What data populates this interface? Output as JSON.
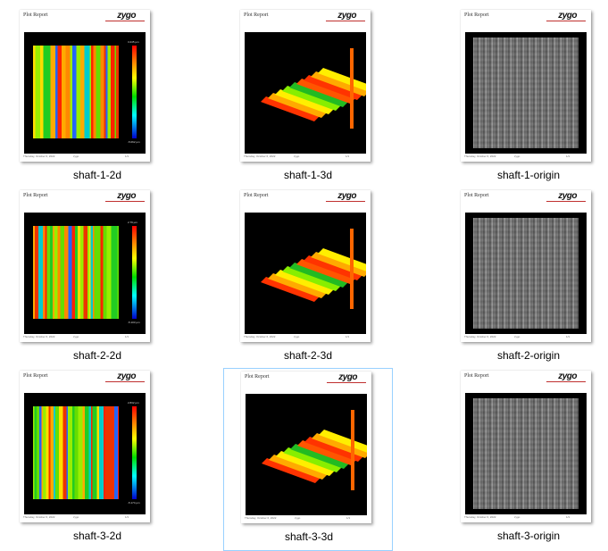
{
  "tiles": [
    {
      "label": "shaft-1-2d",
      "kind": "2d",
      "report_title": "Plot Report",
      "logo": "zygo",
      "cbar_top": "3.245 µm",
      "cbar_bottom": "-5.062 µm",
      "footer_date": "Thursday, October 6, 2022",
      "footer_mid": "zygo",
      "footer_page": "1/1",
      "selected": false
    },
    {
      "label": "shaft-1-3d",
      "kind": "3d",
      "report_title": "Plot Report",
      "logo": "zygo",
      "footer_date": "Thursday, October 6, 2022",
      "footer_mid": "zygo",
      "footer_page": "1/1",
      "selected": false
    },
    {
      "label": "shaft-1-origin",
      "kind": "origin",
      "report_title": "Plot Report",
      "logo": "zygo",
      "footer_date": "Thursday, October 6, 2022",
      "footer_mid": "zygo",
      "footer_page": "1/1",
      "selected": false
    },
    {
      "label": "shaft-2-2d",
      "kind": "2d",
      "report_title": "Plot Report",
      "logo": "zygo",
      "cbar_top": "2.79 µm",
      "cbar_bottom": "-5.103 µm",
      "footer_date": "Thursday, October 6, 2022",
      "footer_mid": "zygo",
      "footer_page": "1/1",
      "selected": false
    },
    {
      "label": "shaft-2-3d",
      "kind": "3d",
      "report_title": "Plot Report",
      "logo": "zygo",
      "footer_date": "Thursday, October 6, 2022",
      "footer_mid": "zygo",
      "footer_page": "1/1",
      "selected": false
    },
    {
      "label": "shaft-2-origin",
      "kind": "origin",
      "report_title": "Plot Report",
      "logo": "zygo",
      "footer_date": "Thursday, October 6, 2022",
      "footer_mid": "zygo",
      "footer_page": "1/1",
      "selected": false
    },
    {
      "label": "shaft-3-2d",
      "kind": "2d",
      "report_title": "Plot Report",
      "logo": "zygo",
      "cbar_top": "2.832 µm",
      "cbar_bottom": "-5.174 µm",
      "footer_date": "Thursday, October 6, 2022",
      "footer_mid": "zygo",
      "footer_page": "1/1",
      "selected": false
    },
    {
      "label": "shaft-3-3d",
      "kind": "3d",
      "report_title": "Plot Report",
      "logo": "zygo",
      "footer_date": "Thursday, October 6, 2022",
      "footer_mid": "zygo",
      "footer_page": "1/1",
      "selected": true
    },
    {
      "label": "shaft-3-origin",
      "kind": "origin",
      "report_title": "Plot Report",
      "logo": "zygo",
      "footer_date": "Thursday, October 6, 2022",
      "footer_mid": "zygo",
      "footer_page": "1/1",
      "selected": false
    }
  ],
  "colors": {
    "selection_border": "#99d1ff",
    "logo_line": "#c0302f"
  }
}
